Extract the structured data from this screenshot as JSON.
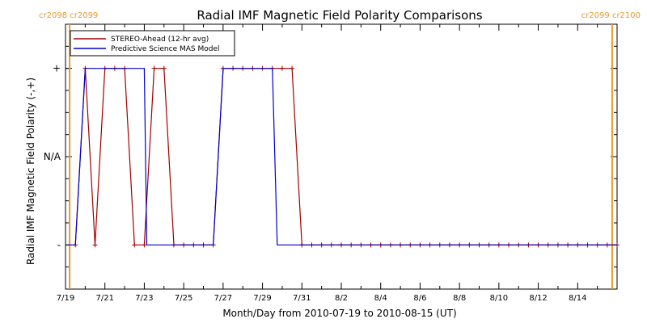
{
  "chart_data": {
    "type": "line",
    "title": "Radial IMF Magnetic Field Polarity Comparisons",
    "xlabel": "Month/Day from 2010-07-19 to 2010-08-15 (UT)",
    "ylabel": "Radial IMF Magnetic Field Polarity (-,+)",
    "x_range": [
      "2010-07-19",
      "2010-08-16"
    ],
    "ylim": [
      -1.5,
      1.5
    ],
    "x_tick_labels": [
      "7/19",
      "7/21",
      "7/23",
      "7/25",
      "7/27",
      "7/29",
      "7/31",
      "8/2",
      "8/4",
      "8/6",
      "8/8",
      "8/10",
      "8/12",
      "8/14"
    ],
    "x_tick_dates": [
      "2010-07-19",
      "2010-07-21",
      "2010-07-23",
      "2010-07-25",
      "2010-07-27",
      "2010-07-29",
      "2010-07-31",
      "2010-08-02",
      "2010-08-04",
      "2010-08-06",
      "2010-08-08",
      "2010-08-10",
      "2010-08-12",
      "2010-08-14"
    ],
    "y_ticks": [
      {
        "label": "+",
        "value": 1
      },
      {
        "label": "N/A",
        "value": 0
      },
      {
        "label": "-",
        "value": -1
      }
    ],
    "carrington_markers": [
      {
        "label": "cr2098 cr2099",
        "date": "2010-07-19 05:00"
      },
      {
        "label": "cr2099 cr2100",
        "date": "2010-08-15 18:00"
      }
    ],
    "legend_placement": "top-left",
    "series": [
      {
        "name": "STEREO-Ahead (12-hr avg)",
        "color": "#a00000",
        "markers": "plus",
        "points": [
          [
            "2010-07-19 12:00",
            -1
          ],
          [
            "2010-07-20 00:00",
            1
          ],
          [
            "2010-07-20 12:00",
            -1
          ],
          [
            "2010-07-21 00:00",
            1
          ],
          [
            "2010-07-21 12:00",
            1
          ],
          [
            "2010-07-22 00:00",
            1
          ],
          [
            "2010-07-22 12:00",
            -1
          ],
          [
            "2010-07-23 00:00",
            -1
          ],
          [
            "2010-07-23 12:00",
            1
          ],
          [
            "2010-07-24 00:00",
            1
          ],
          [
            "2010-07-24 12:00",
            -1
          ],
          [
            "2010-07-25 00:00",
            -1
          ],
          [
            "2010-07-25 12:00",
            -1
          ],
          [
            "2010-07-26 00:00",
            -1
          ],
          [
            "2010-07-26 12:00",
            -1
          ],
          [
            "2010-07-27 00:00",
            1
          ],
          [
            "2010-07-27 12:00",
            1
          ],
          [
            "2010-07-28 00:00",
            1
          ],
          [
            "2010-07-28 12:00",
            1
          ],
          [
            "2010-07-29 00:00",
            1
          ],
          [
            "2010-07-29 12:00",
            1
          ],
          [
            "2010-07-30 00:00",
            1
          ],
          [
            "2010-07-30 12:00",
            1
          ],
          [
            "2010-07-31 00:00",
            -1
          ],
          [
            "2010-07-31 12:00",
            -1
          ],
          [
            "2010-08-01 00:00",
            -1
          ],
          [
            "2010-08-01 12:00",
            -1
          ],
          [
            "2010-08-02 00:00",
            -1
          ],
          [
            "2010-08-02 12:00",
            -1
          ],
          [
            "2010-08-03 00:00",
            -1
          ],
          [
            "2010-08-03 12:00",
            -1
          ],
          [
            "2010-08-04 00:00",
            -1
          ],
          [
            "2010-08-04 12:00",
            -1
          ],
          [
            "2010-08-05 00:00",
            -1
          ],
          [
            "2010-08-05 12:00",
            -1
          ],
          [
            "2010-08-06 00:00",
            -1
          ],
          [
            "2010-08-06 12:00",
            -1
          ],
          [
            "2010-08-07 00:00",
            -1
          ],
          [
            "2010-08-07 12:00",
            -1
          ],
          [
            "2010-08-08 00:00",
            -1
          ],
          [
            "2010-08-08 12:00",
            -1
          ],
          [
            "2010-08-09 00:00",
            -1
          ],
          [
            "2010-08-09 12:00",
            -1
          ],
          [
            "2010-08-10 00:00",
            -1
          ],
          [
            "2010-08-10 12:00",
            -1
          ],
          [
            "2010-08-11 00:00",
            -1
          ],
          [
            "2010-08-11 12:00",
            -1
          ],
          [
            "2010-08-12 00:00",
            -1
          ],
          [
            "2010-08-12 12:00",
            -1
          ],
          [
            "2010-08-13 00:00",
            -1
          ],
          [
            "2010-08-13 12:00",
            -1
          ],
          [
            "2010-08-14 00:00",
            -1
          ],
          [
            "2010-08-14 12:00",
            -1
          ],
          [
            "2010-08-15 00:00",
            -1
          ],
          [
            "2010-08-15 12:00",
            -1
          ],
          [
            "2010-08-16 00:00",
            -1
          ]
        ]
      },
      {
        "name": "Predictive Science MAS Model",
        "color": "#0000cc",
        "markers": "none",
        "points": [
          [
            "2010-07-19 02:00",
            -1
          ],
          [
            "2010-07-19 12:00",
            -1
          ],
          [
            "2010-07-20 00:00",
            1
          ],
          [
            "2010-07-23 00:00",
            1
          ],
          [
            "2010-07-23 03:00",
            -1
          ],
          [
            "2010-07-26 12:00",
            -1
          ],
          [
            "2010-07-27 00:00",
            1
          ],
          [
            "2010-07-29 12:00",
            1
          ],
          [
            "2010-07-29 18:00",
            -1
          ],
          [
            "2010-08-16 00:00",
            -1
          ]
        ]
      }
    ]
  }
}
